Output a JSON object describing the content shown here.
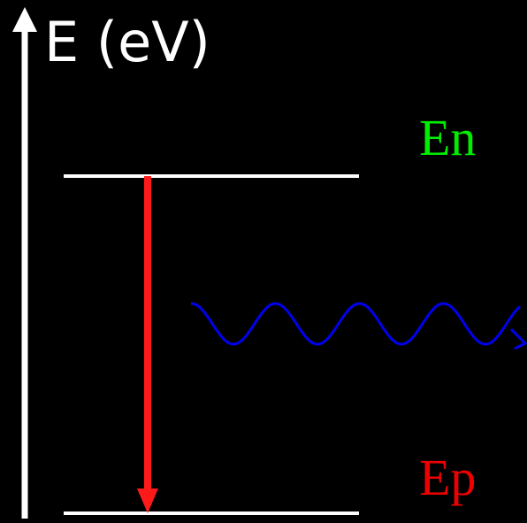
{
  "axis": {
    "label": "E (eV)",
    "color": "#ffffff"
  },
  "levels": {
    "upper": {
      "label": "En",
      "color": "#00ee00"
    },
    "lower": {
      "label": "Ep",
      "color": "#ee0000"
    }
  },
  "transition": {
    "direction": "downward",
    "from": "En",
    "to": "Ep",
    "color": "#ff1a1a"
  },
  "photon": {
    "style": "sinusoidal wave with arrowhead",
    "color": "#0000ee",
    "direction": "rightward"
  }
}
